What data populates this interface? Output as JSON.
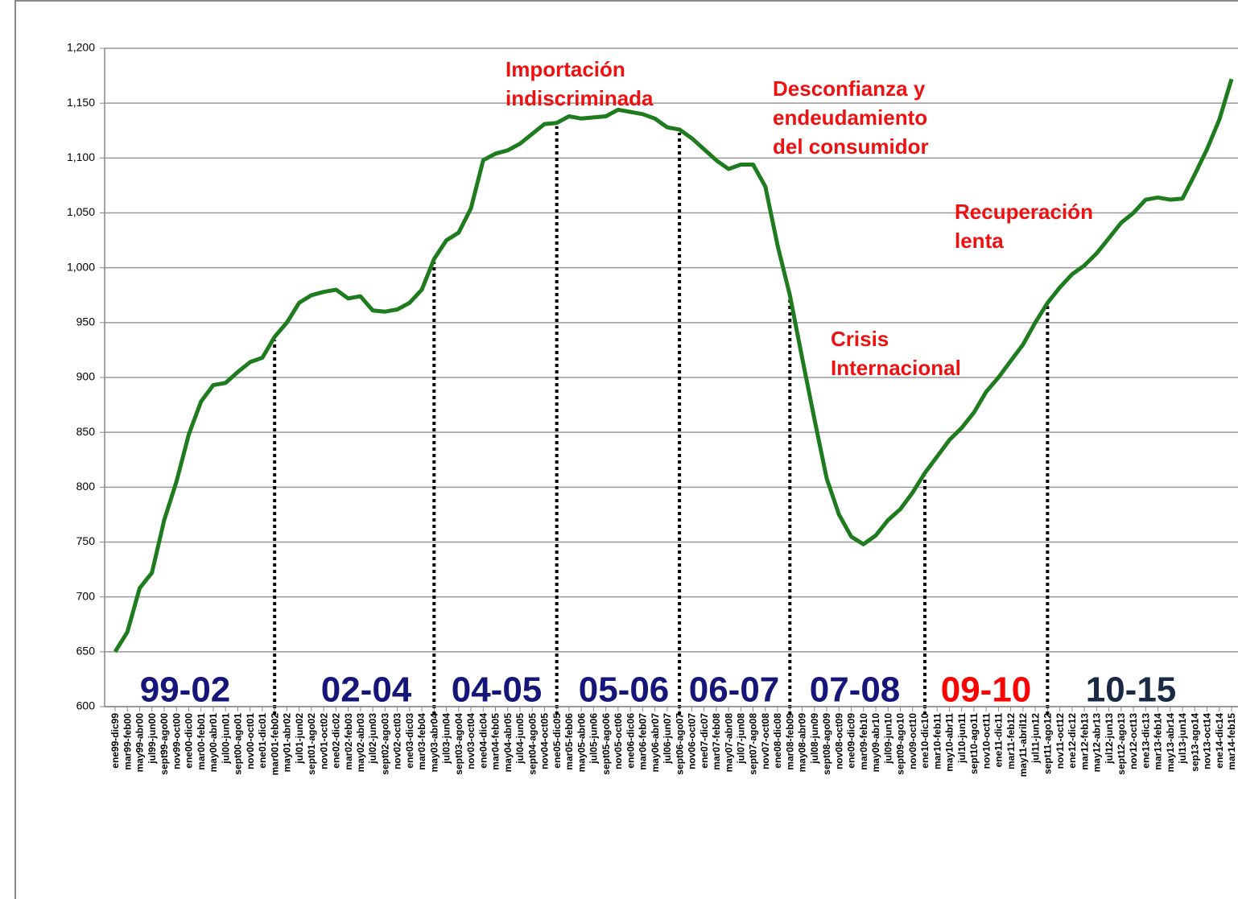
{
  "chart_data": {
    "type": "line",
    "categories": [
      "ene99-dic99",
      "mar99-feb00",
      "may99-abr00",
      "jul99-jun00",
      "sept99-ago00",
      "nov99-oct00",
      "ene00-dic00",
      "mar00-feb01",
      "may00-abr01",
      "jul00-jun01",
      "sept00-ago01",
      "nov00-oct01",
      "ene01-dic01",
      "mar001-feb02",
      "may01-abr02",
      "jul01-jun02",
      "sept01-ago02",
      "nov01-oct02",
      "ene02-dic02",
      "mar02-feb03",
      "may02-abr03",
      "jul02-jun03",
      "sept02-ago03",
      "nov02-oct03",
      "ene03-dic03",
      "mar03-feb04",
      "may03-abr04",
      "jul03-jun04",
      "sept03-ago04",
      "nov03-oct04",
      "ene04-dic04",
      "mar04-feb05",
      "may04-abr05",
      "jul04-jun05",
      "sept04-ago05",
      "nov04-oct05",
      "ene05-dic05",
      "mar05-feb06",
      "may05-abr06",
      "jul05-jun06",
      "sept05-ago06",
      "nov05-oct06",
      "ene06-dic06",
      "mar06-feb07",
      "may06-abr07",
      "jul06-jun07",
      "sept06-ago07",
      "nov06-oct07",
      "ene07-dic07",
      "mar07-feb08",
      "may07-abr08",
      "jul07-jun08",
      "sept07-ago08",
      "nov07-oct08",
      "ene08-dic08",
      "mar08-feb09",
      "may08-abr09",
      "jul08-jun09",
      "sept08-ago09",
      "nov08-oct09",
      "ene09-dic09",
      "mar09-feb10",
      "may09-abr10",
      "jul09-jun10",
      "sept09-ago10",
      "nov09-oct10",
      "ene10-dic10",
      "mar10-feb11",
      "may10-abr11",
      "jul10-jun11",
      "sept10-ago11",
      "nov10-oct11",
      "ene11-dic11",
      "mar11-feb12",
      "may11-abril12",
      "jul11-jun12",
      "sept11-ago12",
      "nov11-oct12",
      "ene12-dic12",
      "mar12-feb13",
      "may12-abr13",
      "jul12-jun13",
      "sept12-ago13",
      "nov12-oct13",
      "ene13-dic13",
      "mar13-feb14",
      "may13-abr14",
      "jul13-jun14",
      "sep13-ago14",
      "nov13-oct14",
      "ene14-dic14",
      "mar14-feb15"
    ],
    "series": [
      {
        "color": "#1e7b1e",
        "values": [
          650,
          668,
          708,
          722,
          770,
          805,
          848,
          878,
          893,
          895,
          905,
          914,
          918,
          937,
          950,
          968,
          975,
          978,
          980,
          972,
          974,
          961,
          960,
          962,
          968,
          980,
          1008,
          1025,
          1032,
          1054,
          1098,
          1104,
          1107,
          1113,
          1122,
          1131,
          1132,
          1138,
          1136,
          1137,
          1138,
          1144,
          1142,
          1140,
          1136,
          1128,
          1126,
          1118,
          1108,
          1098,
          1090,
          1094,
          1094,
          1074,
          1020,
          975,
          918,
          862,
          808,
          775,
          755,
          748,
          756,
          770,
          780,
          795,
          813,
          828,
          843,
          854,
          868,
          887,
          900,
          915,
          930,
          950,
          968,
          982,
          994,
          1002,
          1013,
          1027,
          1041,
          1050,
          1062,
          1064,
          1062,
          1063,
          1085,
          1108,
          1135,
          1172
        ]
      }
    ],
    "ylim": [
      600,
      1200
    ],
    "yticks": [
      600,
      650,
      700,
      750,
      800,
      850,
      900,
      950,
      {
        "value": 1000,
        "label": "1,000"
      },
      {
        "value": 1050,
        "label": "1,050"
      },
      {
        "value": 1100,
        "label": "1,100"
      },
      {
        "value": 1150,
        "label": "1,150"
      },
      {
        "value": 1200,
        "label": "1,200"
      }
    ],
    "grid": true,
    "annotations": [
      {
        "lines": [
          "Importación",
          "indiscriminada"
        ],
        "color": "#ee1111"
      },
      {
        "lines": [
          "Desconfianza y",
          "endeudamiento",
          "del consumidor"
        ],
        "color": "#ee1111"
      },
      {
        "lines": [
          "Recuperación",
          "lenta"
        ],
        "color": "#ee1111"
      },
      {
        "lines": [
          "Crisis",
          "Internacional"
        ],
        "color": "#ee1111"
      }
    ],
    "periods": [
      {
        "label": "99-02",
        "color": "#15157a"
      },
      {
        "label": "02-04",
        "color": "#15157a"
      },
      {
        "label": "04-05",
        "color": "#15157a"
      },
      {
        "label": "05-06",
        "color": "#15157a"
      },
      {
        "label": "06-07",
        "color": "#15157a"
      },
      {
        "label": "07-08",
        "color": "#15157a"
      },
      {
        "label": "09-10",
        "color": "#ff0000"
      },
      {
        "label": "10-15",
        "color": "#1a2a44"
      }
    ]
  }
}
